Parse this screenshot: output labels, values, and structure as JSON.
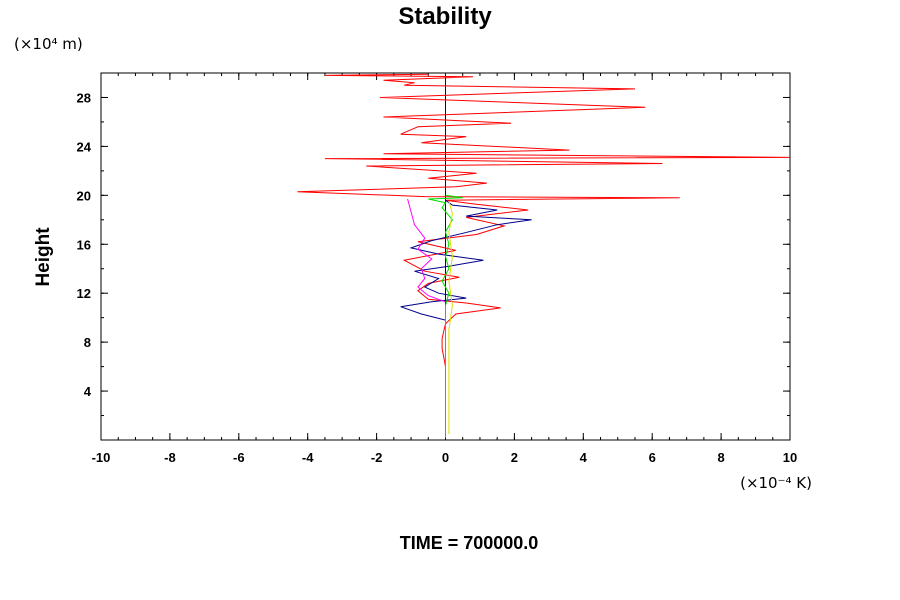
{
  "chart_data": {
    "type": "line",
    "title": "Stability",
    "ylabel": "Height",
    "xlabel": "",
    "y_unit": "(×10⁴ m)",
    "x_unit": "(×10⁻⁴ K)",
    "footer": "TIME = 700000.0",
    "xlim": [
      -10,
      10
    ],
    "ylim": [
      0,
      30
    ],
    "x_ticks": [
      -10,
      -8,
      -6,
      -4,
      -2,
      0,
      2,
      4,
      6,
      8,
      10
    ],
    "y_ticks": [
      4,
      8,
      12,
      16,
      20,
      24,
      28
    ],
    "grid": false,
    "series": [
      {
        "color": "#ff0000",
        "points": [
          [
            0,
            0.2
          ],
          [
            0,
            2
          ],
          [
            0,
            4
          ],
          [
            0,
            6
          ],
          [
            -0.1,
            7.5
          ],
          [
            -0.1,
            8.3
          ],
          [
            0,
            9.5
          ],
          [
            0.3,
            10.3
          ],
          [
            1.6,
            10.8
          ],
          [
            0.6,
            11.2
          ],
          [
            -0.5,
            11.5
          ],
          [
            -0.8,
            12.2
          ],
          [
            -0.5,
            12.8
          ],
          [
            0.4,
            13.3
          ],
          [
            -0.6,
            13.8
          ],
          [
            -1.2,
            14.7
          ],
          [
            0.3,
            15.5
          ],
          [
            -0.8,
            16.2
          ],
          [
            0.9,
            16.8
          ],
          [
            1.7,
            17.5
          ],
          [
            0.6,
            18.2
          ],
          [
            2.4,
            18.8
          ],
          [
            0.8,
            19.3
          ],
          [
            0,
            19.6
          ],
          [
            6.8,
            19.8
          ],
          [
            -0.6,
            19.9
          ],
          [
            -4.3,
            20.3
          ],
          [
            0.3,
            20.7
          ],
          [
            1.2,
            21.0
          ],
          [
            -0.5,
            21.4
          ],
          [
            0.9,
            21.8
          ],
          [
            -2.3,
            22.4
          ],
          [
            6.3,
            22.6
          ],
          [
            -3.5,
            23.0
          ],
          [
            10,
            23.1
          ],
          [
            -1.8,
            23.4
          ],
          [
            3.6,
            23.7
          ],
          [
            -0.7,
            24.3
          ],
          [
            0.6,
            24.8
          ],
          [
            -1.3,
            25.0
          ],
          [
            -0.8,
            25.6
          ],
          [
            1.9,
            25.9
          ],
          [
            -1.8,
            26.4
          ],
          [
            5.8,
            27.2
          ],
          [
            -1.9,
            28.0
          ],
          [
            5.5,
            28.7
          ],
          [
            -1.2,
            29.0
          ],
          [
            -0.9,
            29.2
          ],
          [
            -1.8,
            29.4
          ],
          [
            0.8,
            29.7
          ],
          [
            -3.5,
            29.8
          ],
          [
            -0.5,
            29.9
          ]
        ]
      },
      {
        "color": "#00008b",
        "points": [
          [
            0,
            9.8
          ],
          [
            -0.7,
            10.3
          ],
          [
            -1.3,
            10.9
          ],
          [
            -0.4,
            11.3
          ],
          [
            0.6,
            11.6
          ],
          [
            -0.2,
            12.0
          ],
          [
            -0.6,
            12.5
          ],
          [
            -0.2,
            13.2
          ],
          [
            -0.9,
            13.8
          ],
          [
            0.1,
            14.2
          ],
          [
            1.1,
            14.7
          ],
          [
            -0.2,
            15.2
          ],
          [
            -1.0,
            15.7
          ],
          [
            -0.4,
            16.3
          ],
          [
            0.5,
            16.9
          ],
          [
            1.5,
            17.6
          ],
          [
            2.5,
            18.0
          ],
          [
            0.6,
            18.3
          ],
          [
            1.5,
            18.8
          ],
          [
            0.2,
            19.2
          ],
          [
            0,
            19.6
          ]
        ]
      },
      {
        "color": "#ff00ff",
        "points": [
          [
            0,
            11.3
          ],
          [
            -0.5,
            11.8
          ],
          [
            -0.8,
            12.5
          ],
          [
            -0.6,
            13.2
          ],
          [
            -0.7,
            14.0
          ],
          [
            -0.4,
            14.8
          ],
          [
            -0.8,
            15.6
          ],
          [
            -0.6,
            16.5
          ],
          [
            -0.9,
            17.6
          ],
          [
            -1.1,
            19.7
          ]
        ]
      },
      {
        "color": "#00dd00",
        "points": [
          [
            0,
            0.2
          ],
          [
            0,
            6
          ],
          [
            0,
            11
          ],
          [
            0.1,
            12
          ],
          [
            -0.1,
            13
          ],
          [
            0.1,
            14
          ],
          [
            0,
            15
          ],
          [
            0.1,
            16
          ],
          [
            0,
            17
          ],
          [
            0.2,
            18
          ],
          [
            -0.1,
            19
          ],
          [
            0,
            19.4
          ],
          [
            -0.5,
            19.7
          ],
          [
            0.5,
            19.8
          ],
          [
            0,
            20.0
          ]
        ]
      },
      {
        "color": "#dddd00",
        "points": [
          [
            0.1,
            0.5
          ],
          [
            0.1,
            5
          ],
          [
            0.1,
            9
          ],
          [
            0.2,
            11
          ],
          [
            0.1,
            13
          ],
          [
            0.2,
            15
          ],
          [
            0.1,
            17
          ],
          [
            0.2,
            18.5
          ],
          [
            0.1,
            19.5
          ]
        ]
      }
    ]
  }
}
